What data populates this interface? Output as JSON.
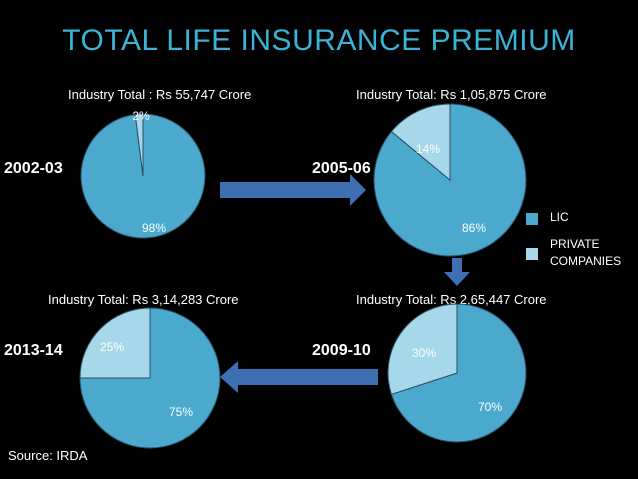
{
  "title": "TOTAL LIFE INSURANCE PREMIUM",
  "source": "Source: IRDA",
  "colors": {
    "lic": "#4aa9cc",
    "private": "#a6d8ea",
    "arrow": "#3f6fb3"
  },
  "legend": [
    {
      "label": "LIC",
      "color": "#4aa9cc"
    },
    {
      "label": "PRIVATE COMPANIES",
      "color": "#a6d8ea"
    }
  ],
  "chart_data": [
    {
      "type": "pie",
      "year": "2002-03",
      "industry_total": "Industry Total : Rs 55,747 Crore",
      "slices": [
        {
          "name": "LIC",
          "value": 98,
          "label": "98%"
        },
        {
          "name": "PRIVATE COMPANIES",
          "value": 2,
          "label": "2%"
        }
      ]
    },
    {
      "type": "pie",
      "year": "2005-06",
      "industry_total": "Industry Total: Rs 1,05,875 Crore",
      "slices": [
        {
          "name": "LIC",
          "value": 86,
          "label": "86%"
        },
        {
          "name": "PRIVATE COMPANIES",
          "value": 14,
          "label": "14%"
        }
      ]
    },
    {
      "type": "pie",
      "year": "2009-10",
      "industry_total": "Industry Total: Rs 2,65,447 Crore",
      "slices": [
        {
          "name": "LIC",
          "value": 70,
          "label": "70%"
        },
        {
          "name": "PRIVATE COMPANIES",
          "value": 30,
          "label": "30%"
        }
      ]
    },
    {
      "type": "pie",
      "year": "2013-14",
      "industry_total": "Industry Total: Rs 3,14,283 Crore",
      "slices": [
        {
          "name": "LIC",
          "value": 75,
          "label": "75%"
        },
        {
          "name": "PRIVATE COMPANIES",
          "value": 25,
          "label": "25%"
        }
      ]
    }
  ]
}
